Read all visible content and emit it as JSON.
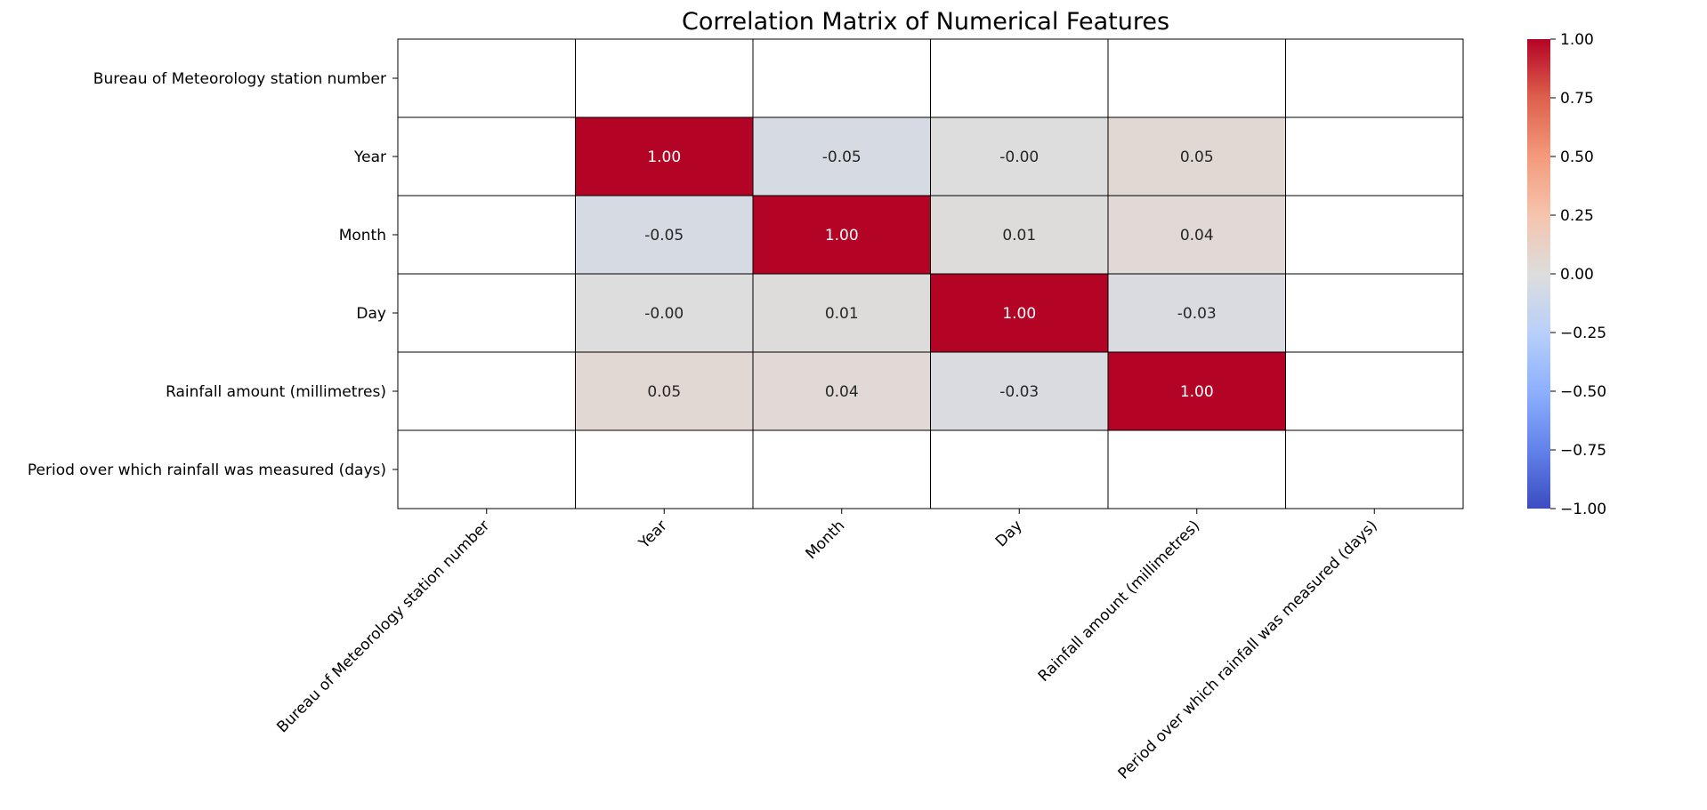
{
  "chart_data": {
    "type": "heatmap",
    "title": "Correlation Matrix of Numerical Features",
    "xlabel": "",
    "ylabel": "",
    "labels": [
      "Bureau of Meteorology station number",
      "Year",
      "Month",
      "Day",
      "Rainfall amount (millimetres)",
      "Period over which rainfall was measured (days)"
    ],
    "matrix": [
      [
        null,
        null,
        null,
        null,
        null,
        null
      ],
      [
        null,
        1.0,
        -0.05,
        -0.0,
        0.05,
        null
      ],
      [
        null,
        -0.05,
        1.0,
        0.01,
        0.04,
        null
      ],
      [
        null,
        -0.0,
        0.01,
        1.0,
        -0.03,
        null
      ],
      [
        null,
        0.05,
        0.04,
        -0.03,
        1.0,
        null
      ],
      [
        null,
        null,
        null,
        null,
        null,
        null
      ]
    ],
    "cell_text": [
      [
        "",
        "",
        "",
        "",
        "",
        ""
      ],
      [
        "",
        "1.00",
        "-0.05",
        "-0.00",
        "0.05",
        ""
      ],
      [
        "",
        "-0.05",
        "1.00",
        "0.01",
        "0.04",
        ""
      ],
      [
        "",
        "-0.00",
        "0.01",
        "1.00",
        "-0.03",
        ""
      ],
      [
        "",
        "0.05",
        "0.04",
        "-0.03",
        "1.00",
        ""
      ],
      [
        "",
        "",
        "",
        "",
        "",
        ""
      ]
    ],
    "colorbar": {
      "colormap": "coolwarm",
      "vmin": -1.0,
      "vmax": 1.0,
      "ticks": [
        1.0,
        0.75,
        0.5,
        0.25,
        0.0,
        -0.25,
        -0.5,
        -0.75,
        -1.0
      ],
      "tick_labels": [
        "1.00",
        "0.75",
        "0.50",
        "0.25",
        "0.00",
        "−0.25",
        "−0.50",
        "−0.75",
        "−1.00"
      ]
    },
    "colors": {
      "cell_border": "#000000",
      "nan_cell": "#ffffff",
      "text_light": "#ffffff",
      "text_dark": "#262626"
    }
  }
}
